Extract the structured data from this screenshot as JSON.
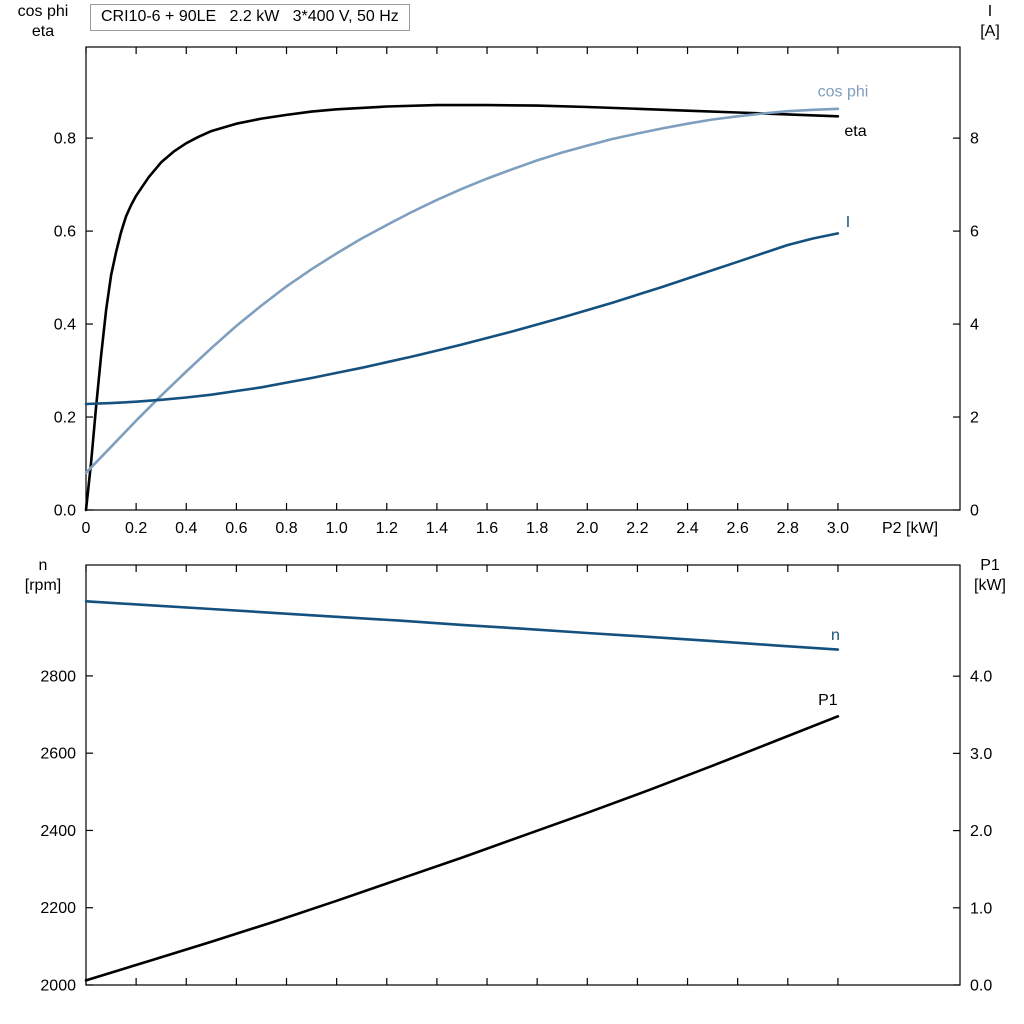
{
  "colors": {
    "black": "#000000",
    "dark_blue": "#15517f",
    "light_blue": "#7f9fbe",
    "frame": "#000000",
    "title_border": "#9a9a9a"
  },
  "chart_data": [
    {
      "type": "line",
      "title": "CRI10-6 + 90LE   2.2 kW   3*400 V, 50 Hz",
      "x_axis": {
        "label": "P2 [kW]",
        "min": 0,
        "max": 3.487,
        "ticks": [
          0,
          0.2,
          0.4,
          0.6,
          0.8,
          1.0,
          1.2,
          1.4,
          1.6,
          1.8,
          2.0,
          2.2,
          2.4,
          2.6,
          2.8,
          3.0
        ],
        "tick_labels": [
          "0",
          "0.2",
          "0.4",
          "0.6",
          "0.8",
          "1.0",
          "1.2",
          "1.4",
          "1.6",
          "1.8",
          "2.0",
          "2.2",
          "2.4",
          "2.6",
          "2.8",
          "3.0"
        ],
        "show_tick_labels": true
      },
      "y_left": {
        "label_lines": [
          "cos phi",
          "eta"
        ],
        "min": 0,
        "max": 0.996,
        "ticks": [
          0,
          0.2,
          0.4,
          0.6,
          0.8
        ],
        "tick_labels": [
          "0.0",
          "0.2",
          "0.4",
          "0.6",
          "0.8"
        ]
      },
      "y_right": {
        "label_lines": [
          "I",
          "[A]"
        ],
        "min": 0,
        "max": 9.96,
        "ticks": [
          0,
          2,
          4,
          6,
          8
        ],
        "tick_labels": [
          "0",
          "2",
          "4",
          "6",
          "8"
        ]
      },
      "series": [
        {
          "name": "eta",
          "axis": "left",
          "color_key": "black",
          "label": {
            "text": "eta",
            "x": 3.07,
            "y": 0.815
          },
          "points": [
            [
              0,
              0
            ],
            [
              0.02,
              0.1
            ],
            [
              0.04,
              0.22
            ],
            [
              0.06,
              0.33
            ],
            [
              0.08,
              0.43
            ],
            [
              0.1,
              0.505
            ],
            [
              0.12,
              0.555
            ],
            [
              0.14,
              0.598
            ],
            [
              0.16,
              0.632
            ],
            [
              0.18,
              0.656
            ],
            [
              0.2,
              0.676
            ],
            [
              0.25,
              0.716
            ],
            [
              0.3,
              0.748
            ],
            [
              0.35,
              0.771
            ],
            [
              0.4,
              0.789
            ],
            [
              0.45,
              0.803
            ],
            [
              0.5,
              0.815
            ],
            [
              0.6,
              0.831
            ],
            [
              0.7,
              0.842
            ],
            [
              0.8,
              0.85
            ],
            [
              0.9,
              0.857
            ],
            [
              1.0,
              0.862
            ],
            [
              1.2,
              0.868
            ],
            [
              1.4,
              0.871
            ],
            [
              1.6,
              0.871
            ],
            [
              1.8,
              0.87
            ],
            [
              2.0,
              0.867
            ],
            [
              2.2,
              0.863
            ],
            [
              2.4,
              0.859
            ],
            [
              2.6,
              0.855
            ],
            [
              2.8,
              0.851
            ],
            [
              3.0,
              0.847
            ]
          ]
        },
        {
          "name": "cos phi",
          "axis": "left",
          "color_key": "light_blue",
          "label": {
            "text": "cos phi",
            "x": 3.02,
            "y": 0.9
          },
          "points": [
            [
              0,
              0.08
            ],
            [
              0.1,
              0.136
            ],
            [
              0.2,
              0.192
            ],
            [
              0.3,
              0.246
            ],
            [
              0.4,
              0.298
            ],
            [
              0.5,
              0.348
            ],
            [
              0.6,
              0.396
            ],
            [
              0.7,
              0.44
            ],
            [
              0.8,
              0.481
            ],
            [
              0.9,
              0.518
            ],
            [
              1.0,
              0.552
            ],
            [
              1.1,
              0.584
            ],
            [
              1.2,
              0.613
            ],
            [
              1.3,
              0.641
            ],
            [
              1.4,
              0.667
            ],
            [
              1.5,
              0.691
            ],
            [
              1.6,
              0.713
            ],
            [
              1.7,
              0.733
            ],
            [
              1.8,
              0.752
            ],
            [
              1.9,
              0.769
            ],
            [
              2.0,
              0.784
            ],
            [
              2.1,
              0.798
            ],
            [
              2.2,
              0.81
            ],
            [
              2.3,
              0.821
            ],
            [
              2.4,
              0.831
            ],
            [
              2.5,
              0.84
            ],
            [
              2.6,
              0.847
            ],
            [
              2.7,
              0.853
            ],
            [
              2.8,
              0.858
            ],
            [
              2.9,
              0.861
            ],
            [
              3.0,
              0.863
            ]
          ]
        },
        {
          "name": "I",
          "axis": "right",
          "color_key": "dark_blue",
          "label": {
            "text": "I",
            "x": 3.04,
            "y": 6.2
          },
          "points": [
            [
              0,
              2.28
            ],
            [
              0.1,
              2.3
            ],
            [
              0.2,
              2.33
            ],
            [
              0.3,
              2.37
            ],
            [
              0.4,
              2.42
            ],
            [
              0.5,
              2.48
            ],
            [
              0.6,
              2.56
            ],
            [
              0.7,
              2.64
            ],
            [
              0.8,
              2.74
            ],
            [
              0.9,
              2.84
            ],
            [
              1.0,
              2.95
            ],
            [
              1.1,
              3.06
            ],
            [
              1.2,
              3.18
            ],
            [
              1.3,
              3.3
            ],
            [
              1.4,
              3.43
            ],
            [
              1.5,
              3.56
            ],
            [
              1.6,
              3.7
            ],
            [
              1.7,
              3.84
            ],
            [
              1.8,
              3.99
            ],
            [
              1.9,
              4.14
            ],
            [
              2.0,
              4.3
            ],
            [
              2.1,
              4.46
            ],
            [
              2.2,
              4.63
            ],
            [
              2.3,
              4.8
            ],
            [
              2.4,
              4.98
            ],
            [
              2.5,
              5.16
            ],
            [
              2.6,
              5.34
            ],
            [
              2.7,
              5.52
            ],
            [
              2.8,
              5.7
            ],
            [
              2.9,
              5.84
            ],
            [
              3.0,
              5.95
            ]
          ]
        }
      ]
    },
    {
      "type": "line",
      "title": "",
      "x_axis": {
        "label": "",
        "min": 0,
        "max": 3.487,
        "ticks": [
          0,
          0.2,
          0.4,
          0.6,
          0.8,
          1.0,
          1.2,
          1.4,
          1.6,
          1.8,
          2.0,
          2.2,
          2.4,
          2.6,
          2.8,
          3.0
        ],
        "tick_labels": [],
        "show_tick_labels": false
      },
      "y_left": {
        "label_lines": [
          "n",
          "[rpm]"
        ],
        "min": 2000,
        "max": 3087,
        "ticks": [
          2000,
          2200,
          2400,
          2600,
          2800
        ],
        "tick_labels": [
          "2000",
          "2200",
          "2400",
          "2600",
          "2800"
        ]
      },
      "y_right": {
        "label_lines": [
          "P1",
          "[kW]"
        ],
        "min": 0,
        "max": 5.44,
        "ticks": [
          0,
          1,
          2,
          3,
          4
        ],
        "tick_labels": [
          "0.0",
          "1.0",
          "2.0",
          "3.0",
          "4.0"
        ]
      },
      "series": [
        {
          "name": "n",
          "axis": "left",
          "color_key": "dark_blue",
          "label": {
            "text": "n",
            "x": 2.99,
            "y": 2906
          },
          "points": [
            [
              0,
              2993
            ],
            [
              0.25,
              2983
            ],
            [
              0.5,
              2973
            ],
            [
              0.75,
              2963
            ],
            [
              1.0,
              2953
            ],
            [
              1.25,
              2943
            ],
            [
              1.5,
              2932
            ],
            [
              1.75,
              2922
            ],
            [
              2.0,
              2911
            ],
            [
              2.25,
              2901
            ],
            [
              2.5,
              2890
            ],
            [
              2.75,
              2879
            ],
            [
              3.0,
              2868
            ]
          ]
        },
        {
          "name": "P1",
          "axis": "right",
          "color_key": "black",
          "label": {
            "text": "P1",
            "x": 2.96,
            "y": 3.69
          },
          "points": [
            [
              0,
              0.06
            ],
            [
              0.25,
              0.31
            ],
            [
              0.5,
              0.56
            ],
            [
              0.75,
              0.82
            ],
            [
              1.0,
              1.09
            ],
            [
              1.25,
              1.37
            ],
            [
              1.5,
              1.65
            ],
            [
              1.75,
              1.94
            ],
            [
              2.0,
              2.23
            ],
            [
              2.25,
              2.53
            ],
            [
              2.5,
              2.84
            ],
            [
              2.75,
              3.16
            ],
            [
              3.0,
              3.48
            ]
          ]
        }
      ]
    }
  ]
}
